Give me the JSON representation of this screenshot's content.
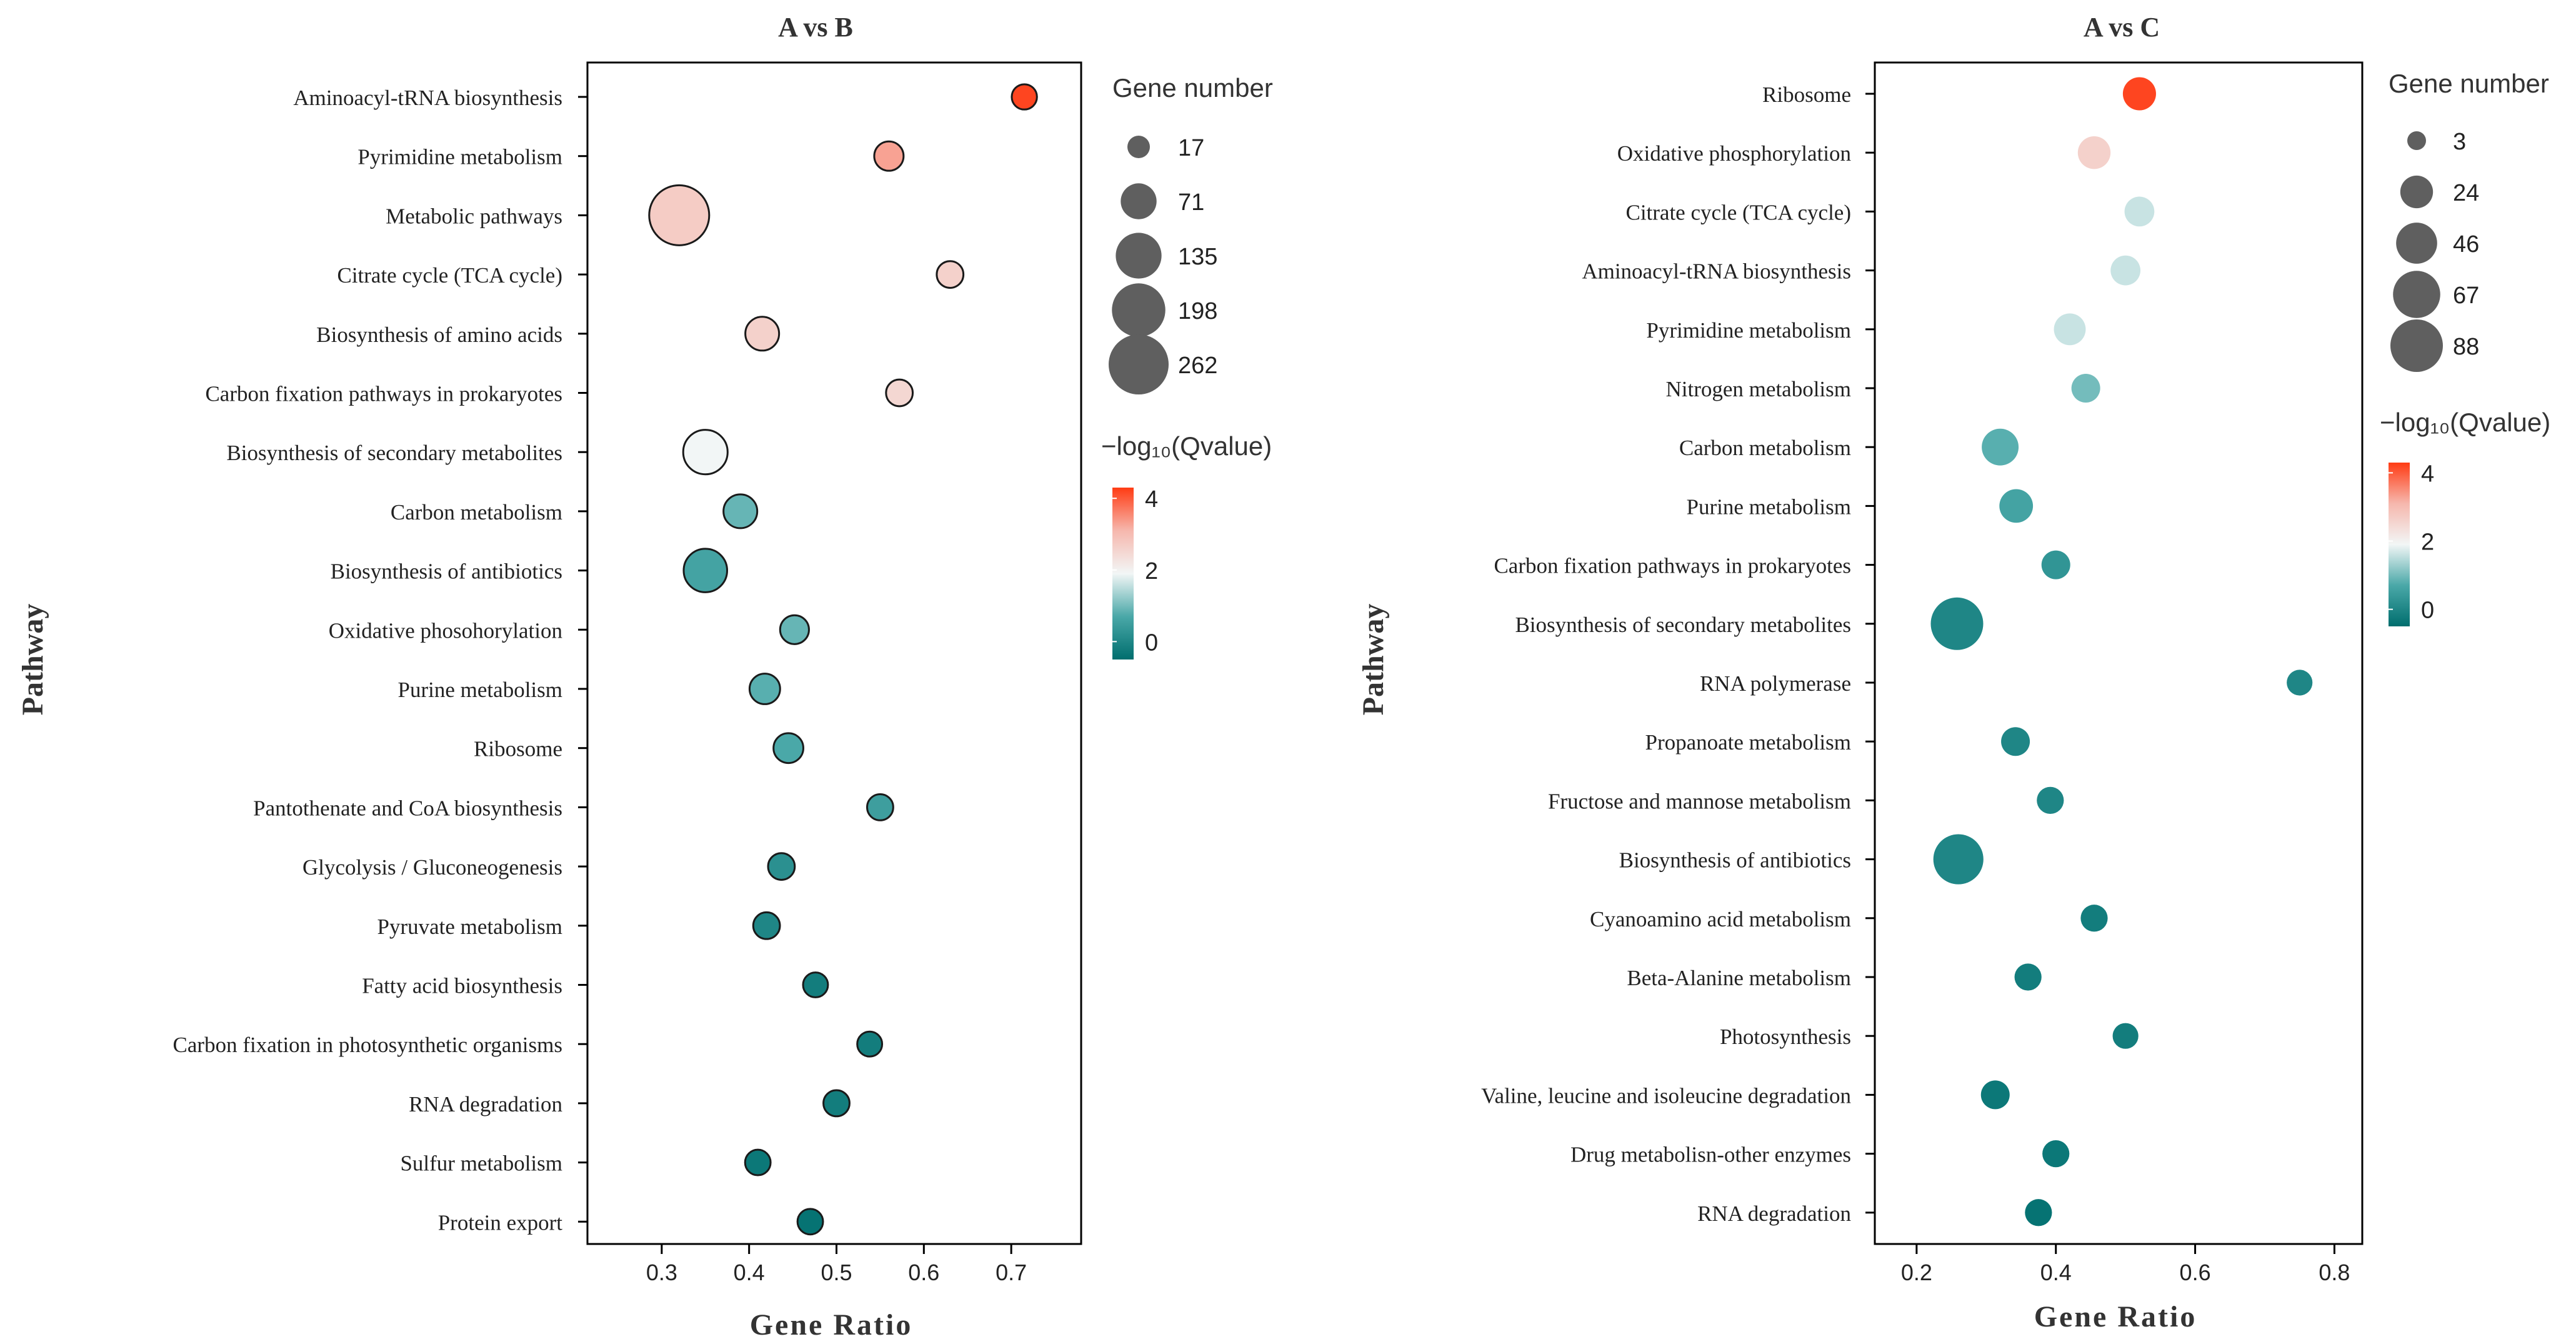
{
  "chart_data": [
    {
      "type": "scatter",
      "title": "A vs B",
      "xlabel": "Gene Ratio",
      "ylabel": "Pathway",
      "xlim": [
        0.215,
        0.78
      ],
      "xticks": [
        "0.3",
        "0.4",
        "0.5",
        "0.6",
        "0.7"
      ],
      "xtick_values": [
        0.3,
        0.4,
        0.5,
        0.6,
        0.7
      ],
      "size_legend_title": "Gene number",
      "size_legend": [
        "17",
        "71",
        "135",
        "198",
        "262"
      ],
      "size_legend_values": [
        17,
        71,
        135,
        198,
        262
      ],
      "color_legend_title": "−log₁₀(Qvalue)",
      "color_legend_ticks": [
        "4",
        "2",
        "0"
      ],
      "color_legend_tick_values": [
        4,
        2,
        0
      ],
      "color_range": [
        -0.5,
        4.3
      ],
      "outline": true,
      "pathways": [
        "Aminoacyl-tRNA biosynthesis",
        "Pyrimidine metabolism",
        "Metabolic pathways",
        "Citrate cycle (TCA cycle)",
        "Biosynthesis of amino acids",
        "Carbon fixation pathways in prokaryotes",
        "Biosynthesis of secondary metabolites",
        "Carbon metabolism",
        "Biosynthesis of antibiotics",
        "Oxidative phosohorylation",
        "Purine metabolism",
        "Ribosome",
        "Pantothenate and CoA biosynthesis",
        "Glycolysis / Gluconeogenesis",
        "Pyruvate metabolism",
        "Fatty acid biosynthesis",
        "Carbon fixation in photosynthetic organisms",
        "RNA degradation",
        "Sulfur metabolism",
        "Protein export"
      ],
      "gene_ratio": [
        0.715,
        0.56,
        0.32,
        0.63,
        0.415,
        0.572,
        0.35,
        0.39,
        0.35,
        0.452,
        0.418,
        0.445,
        0.55,
        0.437,
        0.42,
        0.476,
        0.538,
        0.5,
        0.41,
        0.47
      ],
      "gene_number": [
        25,
        40,
        262,
        30,
        60,
        30,
        125,
        60,
        118,
        38,
        45,
        42,
        28,
        30,
        30,
        24,
        24,
        28,
        26,
        26
      ],
      "neg_log10_qvalue": [
        4.2,
        3.3,
        2.7,
        2.6,
        2.6,
        2.5,
        1.9,
        0.9,
        0.6,
        0.9,
        0.8,
        0.7,
        0.5,
        0.2,
        0.0,
        -0.2,
        -0.2,
        -0.2,
        -0.3,
        -0.4
      ]
    },
    {
      "type": "scatter",
      "title": "A vs C",
      "xlabel": "Gene Ratio",
      "ylabel": "Pathway",
      "xlim": [
        0.14,
        0.84
      ],
      "xticks": [
        "0.2",
        "0.4",
        "0.6",
        "0.8"
      ],
      "xtick_values": [
        0.2,
        0.4,
        0.6,
        0.8
      ],
      "size_legend_title": "Gene number",
      "size_legend": [
        "3",
        "24",
        "46",
        "67",
        "88"
      ],
      "size_legend_values": [
        3,
        24,
        46,
        67,
        88
      ],
      "color_legend_title": "−log₁₀(Qvalue)",
      "color_legend_ticks": [
        "4",
        "2",
        "0"
      ],
      "color_legend_tick_values": [
        4,
        2,
        0
      ],
      "color_range": [
        -0.5,
        4.3
      ],
      "outline": false,
      "pathways": [
        "Ribosome",
        "Oxidative phosphorylation",
        "Citrate cycle (TCA cycle)",
        "Aminoacyl-tRNA biosynthesis",
        "Pyrimidine metabolism",
        "Nitrogen metabolism",
        "Carbon metabolism",
        "Purine metabolism",
        "Carbon fixation pathways in prokaryotes",
        "Biosynthesis of secondary metabolites",
        "RNA polymerase",
        "Propanoate metabolism",
        "Fructose and mannose metabolism",
        "Biosynthesis of antibiotics",
        "Cyanoamino acid metabolism",
        "Beta-Alanine metabolism",
        "Photosynthesis",
        "Valine, leucine and isoleucine degradation",
        "Drug metabolisn-other enzymes",
        "RNA degradation"
      ],
      "gene_ratio": [
        0.52,
        0.455,
        0.52,
        0.5,
        0.42,
        0.443,
        0.32,
        0.343,
        0.4,
        0.258,
        0.75,
        0.342,
        0.392,
        0.26,
        0.455,
        0.36,
        0.5,
        0.313,
        0.4,
        0.375
      ],
      "gene_number": [
        25,
        24,
        18,
        18,
        22,
        16,
        34,
        26,
        16,
        88,
        11,
        16,
        13,
        78,
        13,
        13,
        11,
        16,
        13,
        13
      ],
      "neg_log10_qvalue": [
        4.2,
        2.6,
        1.6,
        1.6,
        1.6,
        1.0,
        0.8,
        0.6,
        0.3,
        0.0,
        0.0,
        0.0,
        0.0,
        0.0,
        -0.2,
        -0.2,
        -0.2,
        -0.3,
        -0.3,
        -0.4
      ]
    }
  ],
  "colors": {
    "high": "#ff3b13",
    "mid_high": "#f6b7ad",
    "mid": "#f2f6f6",
    "mid_low": "#4aa8a8",
    "low": "#006e6e"
  }
}
